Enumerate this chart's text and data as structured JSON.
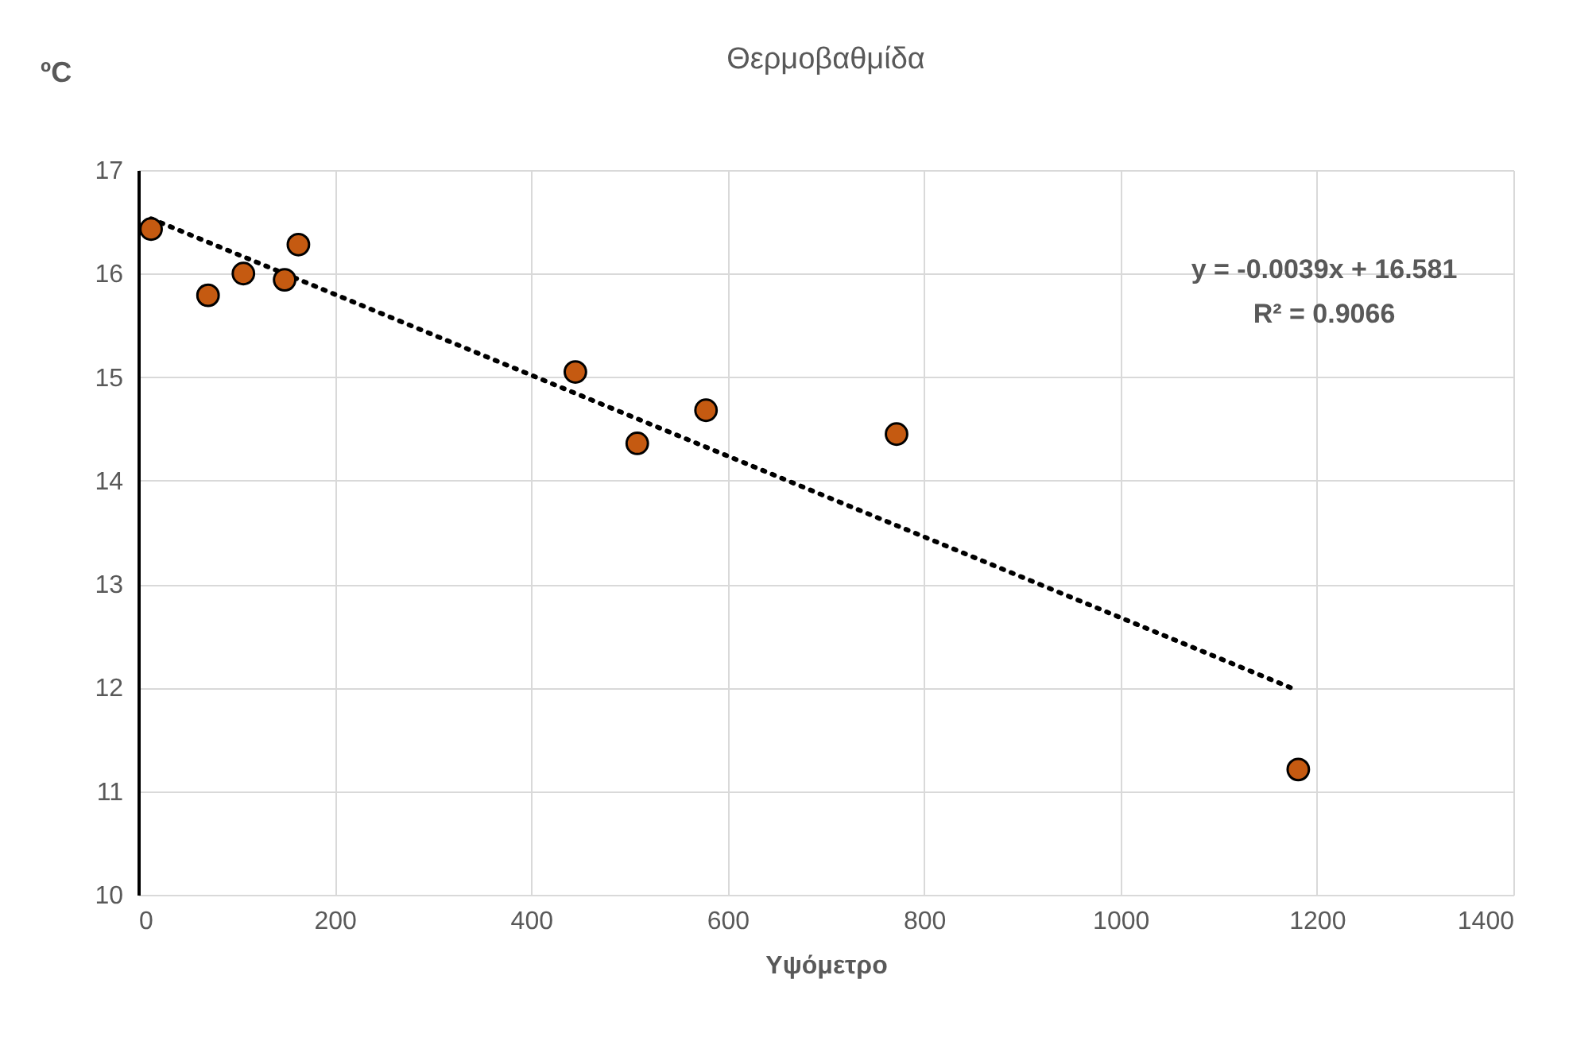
{
  "chart_data": {
    "type": "scatter",
    "title": "Θερμοβαθμίδα",
    "xlabel": "Υψόμετρο",
    "ylabel": "ºC",
    "x": [
      13,
      71,
      107,
      149,
      163,
      445,
      508,
      578,
      772,
      1181
    ],
    "series": [
      {
        "color": "#c55a11",
        "marker": "circle",
        "values": [
          16.43,
          15.79,
          16.0,
          15.94,
          16.28,
          15.05,
          14.36,
          14.68,
          14.45,
          11.21
        ]
      },
      {
        "type": "line",
        "color": "#000000",
        "line_style": "dotted",
        "x": [
          13,
          1176
        ],
        "values": [
          16.53,
          11.99
        ]
      }
    ],
    "annotations": [
      "y = -0.0039x + 16.581",
      "R² = 0.9066"
    ],
    "xlim": [
      0,
      1400
    ],
    "xticks": [
      0,
      200,
      400,
      600,
      800,
      1000,
      1200,
      1400
    ],
    "ylim": [
      10,
      17
    ],
    "yticks": [
      10,
      11,
      12,
      13,
      14,
      15,
      16,
      17
    ],
    "grid": true
  }
}
